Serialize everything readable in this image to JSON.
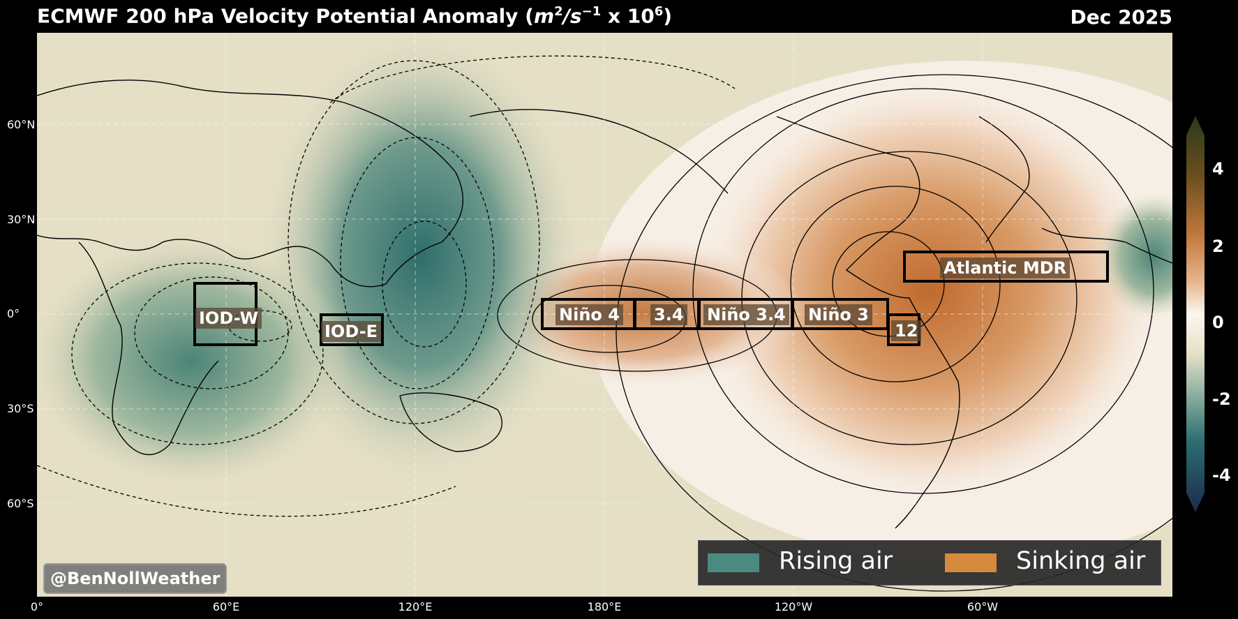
{
  "header": {
    "title_prefix": "ECMWF 200 hPa Velocity Potential Anomaly (",
    "title_unit_m": "m",
    "title_unit_s": "/s",
    "title_sup_2": "2",
    "title_sup_neg1": "−1",
    "title_mult": " x 10",
    "title_sup_6": "6",
    "title_suffix": ")",
    "date": "Dec 2025"
  },
  "lat_ticks": [
    "60°N",
    "30°N",
    "0°",
    "30°S",
    "60°S"
  ],
  "lon_ticks": [
    "0°",
    "60°E",
    "120°E",
    "180°E",
    "120°W",
    "60°W"
  ],
  "colorbar": {
    "ticks": [
      "4",
      "2",
      "0",
      "-2",
      "-4"
    ],
    "colors": [
      "#1b2a4a",
      "#2d6e73",
      "#8fb0a0",
      "#e6e0c8",
      "#fbf6ef",
      "#e7b68e",
      "#c0783b",
      "#6b4e1f",
      "#283a1a"
    ]
  },
  "regions": {
    "iod_w": "IOD-W",
    "iod_e": "IOD-E",
    "nino4": "Niño 4",
    "nino34_short": "3.4",
    "nino34": "Niño 3.4",
    "nino3": "Niño 3",
    "nino12": "12",
    "atlantic_mdr": "Atlantic MDR"
  },
  "legend": {
    "rising": {
      "label": "Rising air",
      "color": "#4a8a80"
    },
    "sinking": {
      "label": "Sinking air",
      "color": "#d58a3c"
    }
  },
  "credit": "@BenNollWeather"
}
